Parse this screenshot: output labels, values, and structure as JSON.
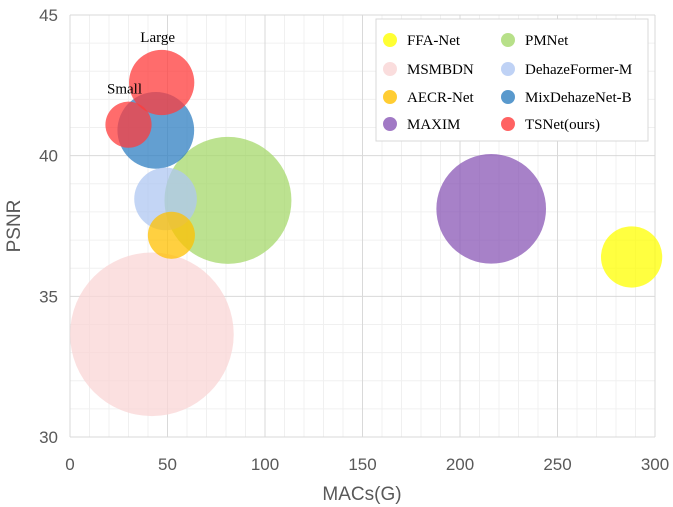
{
  "chart_data": {
    "type": "scatter",
    "variant": "bubble",
    "title": "",
    "xlabel": "MACs(G)",
    "ylabel": "PSNR",
    "xlim": [
      0,
      300
    ],
    "ylim": [
      30,
      45
    ],
    "xticks": [
      0,
      50,
      100,
      150,
      200,
      250,
      300
    ],
    "yticks": [
      30,
      35,
      40,
      45
    ],
    "grid": true,
    "minor_grid": true,
    "legend_position": "top-right",
    "series": [
      {
        "name": "FFA-Net",
        "color": "#ffff00",
        "points": [
          {
            "x": 288,
            "y": 36.4,
            "size": 4.4
          }
        ]
      },
      {
        "name": "MSMBDN",
        "color": "#f9d5d5",
        "points": [
          {
            "x": 42,
            "y": 33.65,
            "size": 31.4
          }
        ]
      },
      {
        "name": "AECR-Net",
        "color": "#ffc000",
        "points": [
          {
            "x": 52,
            "y": 37.17,
            "size": 2.6
          }
        ]
      },
      {
        "name": "MAXIM",
        "color": "#8a57b6",
        "points": [
          {
            "x": 216,
            "y": 38.11,
            "size": 14.1
          }
        ]
      },
      {
        "name": "PMNet",
        "color": "#a5d86b",
        "points": [
          {
            "x": 81,
            "y": 38.41,
            "size": 18.9
          }
        ]
      },
      {
        "name": "DehazeFormer-M",
        "color": "#afc7f2",
        "points": [
          {
            "x": 49,
            "y": 38.46,
            "size": 4.6
          }
        ]
      },
      {
        "name": "MixDehazeNet-B",
        "color": "#2f7fc1",
        "points": [
          {
            "x": 44,
            "y": 40.9,
            "size": 6.9
          }
        ]
      },
      {
        "name": "TSNet(ours)",
        "color": "#ff3b3b",
        "points": [
          {
            "x": 30,
            "y": 41.1,
            "size": 2.5,
            "label": "Small"
          },
          {
            "x": 47,
            "y": 42.6,
            "size": 5.0,
            "label": "Large"
          }
        ]
      }
    ]
  }
}
